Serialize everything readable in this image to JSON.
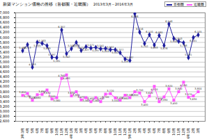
{
  "chart_data": {
    "type": "line",
    "title": "新築マンション価格の推移（首都圏・近畿圏）",
    "subtitle": "2013年3月～2016年3月",
    "categories": [
      "2013年3月",
      "4月",
      "5月",
      "6月",
      "7月",
      "8月",
      "9月",
      "10月",
      "11月",
      "12月",
      "2014年1月",
      "2月",
      "3月",
      "4月",
      "5月",
      "6月",
      "7月",
      "8月",
      "9月",
      "10月",
      "11月",
      "12月",
      "2015年1月",
      "2月",
      "3月",
      "4月",
      "5月",
      "6月",
      "7月",
      "8月",
      "9月",
      "10月",
      "11月",
      "12月",
      "2016年1月",
      "2月",
      "3月"
    ],
    "series": [
      {
        "name": "首都圏",
        "color": "#1f1f9f",
        "marker": "diamond",
        "values": [
          5465,
          5713,
          4793,
          5805,
          5763,
          5669,
          5197,
          5181,
          6307,
          5342,
          5545,
          5803,
          5474,
          5627,
          5571,
          5597,
          5541,
          5553,
          5507,
          5502,
          5377,
          5129,
          5067,
          6966,
          6216,
          5752,
          6110,
          5693,
          6080,
          5676,
          6548,
          5958,
          5843,
          5788,
          5181,
          6001,
          6105
        ],
        "value_labels": [
          "5,465",
          "5,713",
          "4,793",
          "5,805",
          "5,763",
          "5,669",
          "5,197",
          "5,181",
          "6,307",
          "5,342",
          "5,545",
          "5,803",
          "5,474",
          "5,627",
          "5,571",
          "5,597",
          "5,541",
          "5,553",
          "5,507",
          "5,502",
          "5,377",
          "5,129",
          "5,067",
          "6,966",
          "6,216",
          "5,752",
          "6,110",
          "5,693",
          "6,080",
          "5,676",
          "6,548",
          "5,958",
          "5,843",
          "5,788",
          "5,181",
          "6,001",
          "6,105"
        ]
      },
      {
        "name": "近畿圏",
        "color": "#ff55ff",
        "marker": "square",
        "values": [
          3650,
          3730,
          3450,
          3680,
          3690,
          3870,
          3500,
          3560,
          4340,
          4480,
          3630,
          3800,
          3470,
          3560,
          3400,
          3560,
          3400,
          3700,
          3720,
          3550,
          3450,
          3660,
          3560,
          3800,
          3750,
          3400,
          3620,
          4020,
          3400,
          3590,
          3920,
          3450,
          3800,
          4190,
          3570,
          3630,
          3800
        ],
        "value_labels": [
          "3,650",
          "3,730",
          "3,450",
          "3,680",
          "3,690",
          "3,870",
          "3,500",
          "3,560",
          "4,340",
          "4,480",
          "3,630",
          "3,800",
          "3,470",
          "3,560",
          "3,400",
          "3,560",
          "3,400",
          "3,700",
          "3,720",
          "3,550",
          "3,450",
          "3,660",
          "3,560",
          "3,800",
          "3,750",
          "3,400",
          "3,620",
          "4,020",
          "3,400",
          "3,590",
          "3,920",
          "3,450",
          "3,800",
          "4,190",
          "3,570",
          "3,630",
          "3,800"
        ]
      }
    ],
    "ylim": [
      2600,
      7000
    ],
    "yticks": [
      {
        "value": 2600,
        "label": "2,600"
      },
      {
        "value": 2800,
        "label": "2,800"
      },
      {
        "value": 3000,
        "label": "3,000"
      },
      {
        "value": 3200,
        "label": "3,200"
      },
      {
        "value": 3400,
        "label": "3,400"
      },
      {
        "value": 3600,
        "label": "3,600"
      },
      {
        "value": 3800,
        "label": "3,800"
      },
      {
        "value": 4000,
        "label": "4,000"
      },
      {
        "value": 4200,
        "label": "4,200"
      },
      {
        "value": 4400,
        "label": "4,400"
      },
      {
        "value": 4600,
        "label": "4,600"
      },
      {
        "value": 4800,
        "label": "4,800"
      },
      {
        "value": 5000,
        "label": "5,000"
      },
      {
        "value": 5200,
        "label": "5,200"
      },
      {
        "value": 5400,
        "label": "5,400"
      },
      {
        "value": 5600,
        "label": "5,600"
      },
      {
        "value": 5800,
        "label": "5,800"
      },
      {
        "value": 6000,
        "label": "6,000"
      },
      {
        "value": 6200,
        "label": "6,200"
      },
      {
        "value": 6400,
        "label": "6,400"
      },
      {
        "value": 6600,
        "label": "6,600"
      },
      {
        "value": 6800,
        "label": "6,800"
      },
      {
        "value": 7000,
        "label": "7,000"
      }
    ],
    "grid": true,
    "legend": "upper right",
    "data_labels": true
  }
}
